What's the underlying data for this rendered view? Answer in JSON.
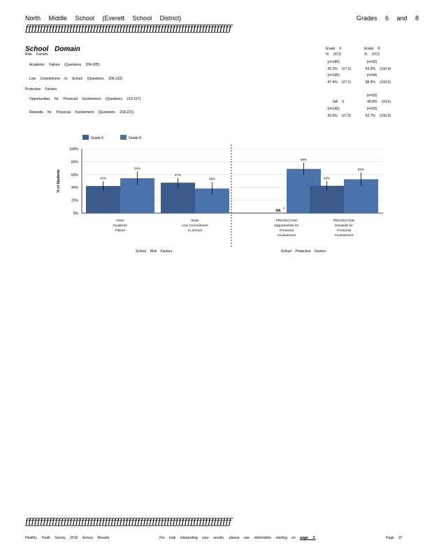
{
  "header": {
    "school": "North Middle School (Everett School District)",
    "grades": "Grades 6 and 8"
  },
  "rule_glyphs": "ƒƒƒƒƒƒƒƒƒƒƒƒƒƒƒƒƒƒƒƒƒƒƒƒƒƒƒƒƒƒƒƒƒƒƒƒƒƒƒƒƒƒƒƒƒƒƒƒƒƒƒƒƒƒƒƒƒƒƒƒƒƒƒƒƒƒƒƒƒƒ",
  "domain": {
    "title": "School Domain",
    "risk_heading": "Risk Factors",
    "protective_heading": "Protective Factors",
    "risk_items": [
      {
        "label": "Academic Failure (Questions 204-205)"
      },
      {
        "label": "Low Commitment to School (Questions 206-212)"
      }
    ],
    "protective_items": [
      {
        "label": "Opportunities for Prosocial Involvement (Questions 213-217)"
      },
      {
        "label": "Rewards for Prosocial Involvement (Questions 218-221)"
      }
    ]
  },
  "table": {
    "col_grade6": "Grade 6",
    "col_grade8": "Grade 8",
    "col_sub": "% (±CI)",
    "rows": [
      {
        "n6": "(n=180)",
        "v6": "42.2% (±7.3)",
        "n8": "(n=92)",
        "v8": "54.3% (±10.4)"
      },
      {
        "n6": "(n=196)",
        "v6": "47.4% (±7.1)",
        "n8": "(n=94)",
        "v8": "38.3% (±10.0)"
      },
      {
        "n6": "",
        "v6": "NA §",
        "n8": "(n=93)",
        "v8": "68.8% (±9.6)"
      },
      {
        "n6": "(n=195)",
        "v6": "42.6% (±7.0)",
        "n8": "(n=93)",
        "v8": "52.7% (±10.3)"
      }
    ]
  },
  "chart_data": {
    "type": "bar",
    "ylabel": "% of Students",
    "ytick_labels": [
      "0%",
      "20%",
      "40%",
      "60%",
      "80%",
      "100%"
    ],
    "ylim": [
      0,
      100
    ],
    "categories": [
      "RISK Academic Failure",
      "RISK Low Commitment to School",
      "PROTECTIVE Opportunities for Prosocial Involvement",
      "PROTECTIVE Rewards for Prosocial Involvement"
    ],
    "category_lines": [
      [
        "RISK",
        "Academic",
        "Failure"
      ],
      [
        "RISK",
        "Low Commitment",
        "to School"
      ],
      [
        "PROTECTIVE",
        "Opportunities for",
        "Prosocial",
        "Involvement"
      ],
      [
        "PROTECTIVE",
        "Rewards for",
        "Prosocial",
        "Involvement"
      ]
    ],
    "series": [
      {
        "name": "Grade 6",
        "color": "#3b5b8c",
        "values": [
          42.2,
          47.4,
          null,
          42.6
        ],
        "ci": [
          7.3,
          7.1,
          null,
          7.0
        ],
        "labels": [
          "42%",
          "47%",
          "NA",
          "43%"
        ]
      },
      {
        "name": "Grade 8",
        "color": "#4a72ab",
        "values": [
          54.3,
          38.3,
          68.8,
          52.7
        ],
        "ci": [
          10.4,
          10.0,
          9.6,
          10.3
        ],
        "labels": [
          "54%",
          "38%",
          "69%",
          "53%"
        ]
      }
    ],
    "na_note": "§",
    "group_labels": [
      "School Risk Factors",
      "School Protective Factors"
    ],
    "legend_placement": "top-left",
    "grid": true
  },
  "footer": {
    "left": "Healthy Youth Survey 2016 Survey Results",
    "middle": "For help interpreting your results, please see information starting on",
    "link": "page 3.",
    "right": "Page 37"
  }
}
